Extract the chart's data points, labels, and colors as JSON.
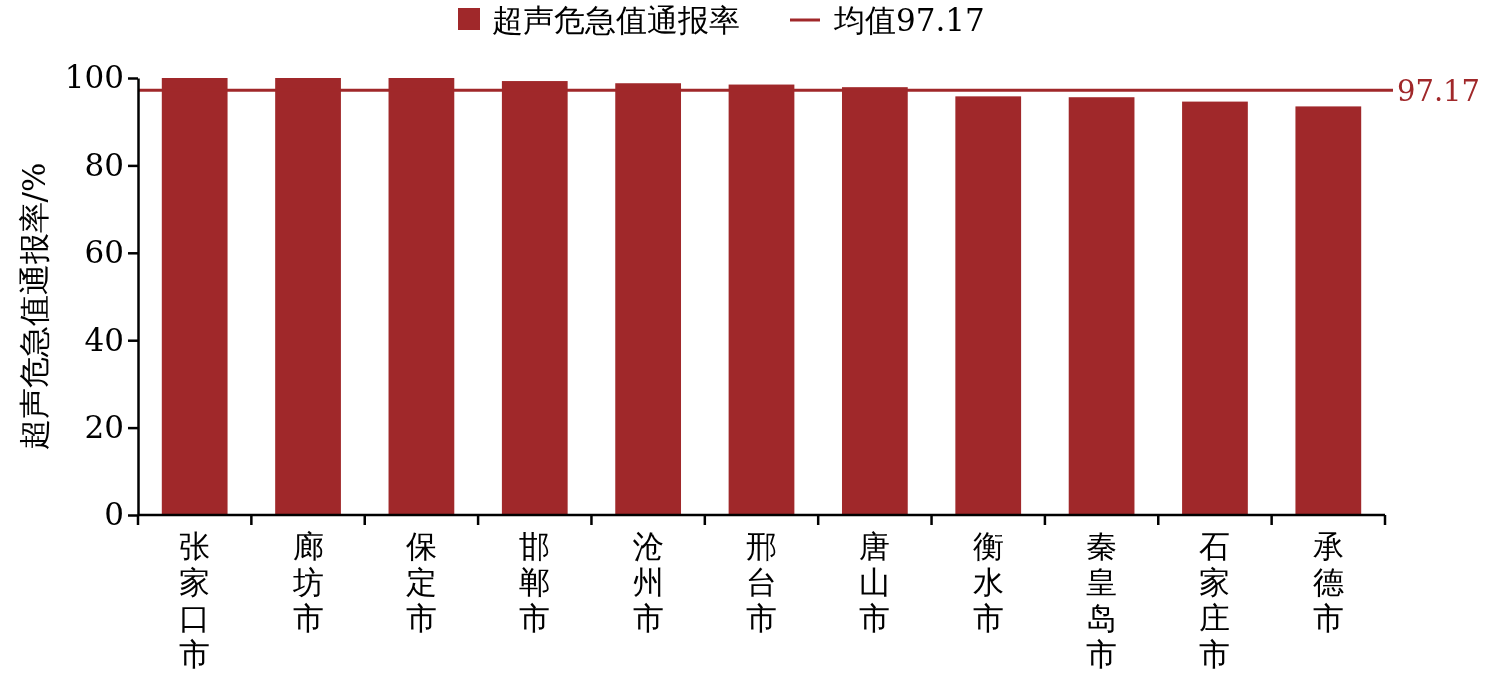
{
  "chart_data": {
    "type": "bar",
    "ylabel": "超声危急值通报率/%",
    "categories": [
      "张家口市",
      "廊坊市",
      "保定市",
      "邯郸市",
      "沧州市",
      "邢台市",
      "唐山市",
      "衡水市",
      "秦皇岛市",
      "石家庄市",
      "承德市"
    ],
    "series": [
      {
        "name": "超声危急值通报率",
        "color": "#a0282a",
        "values": [
          100,
          100,
          100,
          99.3,
          98.8,
          98.5,
          97.9,
          95.8,
          95.6,
          94.6,
          93.5
        ]
      }
    ],
    "ylim": [
      0,
      100
    ],
    "yticks": [
      0,
      20,
      40,
      60,
      80,
      100
    ],
    "grid": false,
    "legend": "top",
    "ref_lines": [
      {
        "axis": "y",
        "value": 97.17,
        "label": "均值97.17",
        "color": "#a0282a",
        "line_style": "solid"
      }
    ],
    "annotations": [
      "97.17"
    ]
  }
}
